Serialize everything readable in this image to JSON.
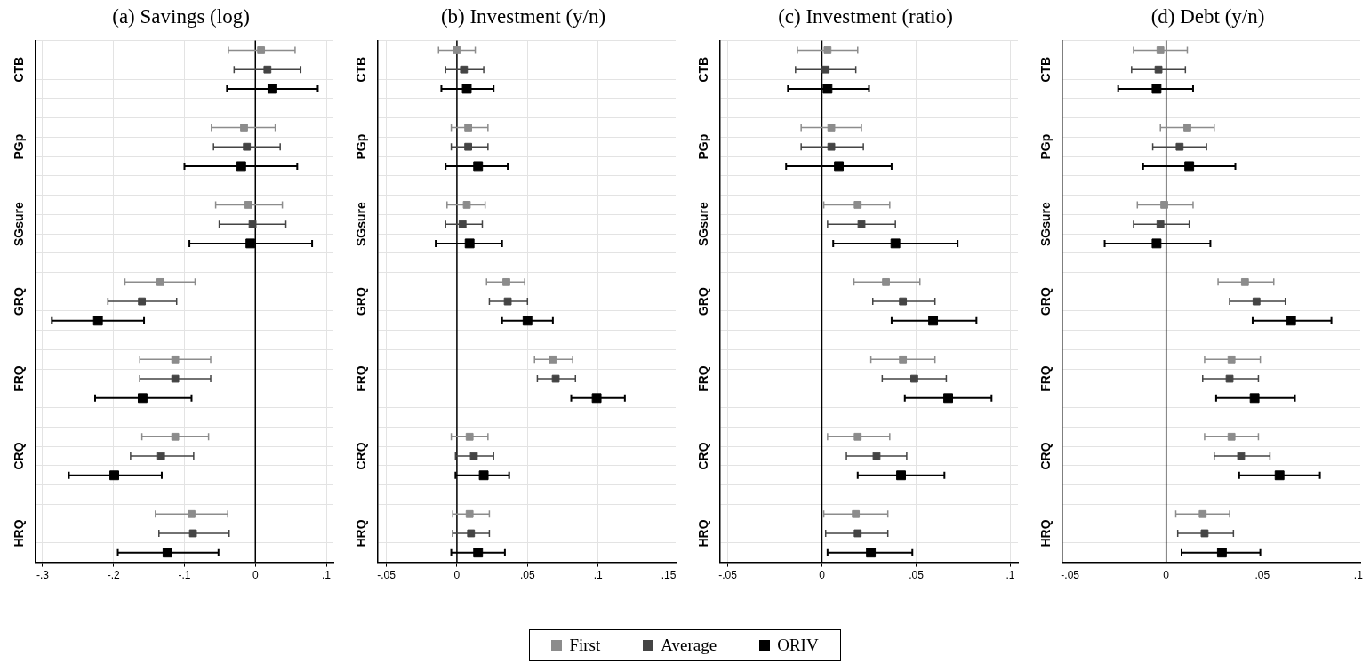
{
  "chart_data": [
    {
      "type": "scatter",
      "orientation": "horizontal",
      "title": "(a) Savings (log)",
      "categories": [
        "CTB",
        "PGp",
        "SGsure",
        "GRQ",
        "FRQ",
        "CRQ",
        "HRQ"
      ],
      "xlim": [
        -0.31,
        0.11
      ],
      "xticks": [
        {
          "value": -0.3,
          "label": "-.3"
        },
        {
          "value": -0.2,
          "label": "-.2"
        },
        {
          "value": -0.1,
          "label": "-.1"
        },
        {
          "value": 0,
          "label": "0"
        },
        {
          "value": 0.1,
          "label": ".1"
        }
      ],
      "grid": true,
      "marker": "square",
      "legend": "bottom",
      "ref_lines": [
        {
          "axis": "x",
          "value": 0,
          "color": "#000000"
        }
      ],
      "series": [
        {
          "name": "First",
          "color": "#8c8c8c",
          "values": [
            0.008,
            -0.016,
            -0.01,
            -0.134,
            -0.113,
            -0.113,
            -0.09
          ],
          "errors": [
            [
              -0.038,
              0.056
            ],
            [
              -0.062,
              0.028
            ],
            [
              -0.056,
              0.038
            ],
            [
              -0.184,
              -0.085
            ],
            [
              -0.163,
              -0.063
            ],
            [
              -0.16,
              -0.066
            ],
            [
              -0.141,
              -0.039
            ]
          ]
        },
        {
          "name": "Average",
          "color": "#444444",
          "values": [
            0.017,
            -0.012,
            -0.004,
            -0.16,
            -0.113,
            -0.133,
            -0.088
          ],
          "errors": [
            [
              -0.03,
              0.064
            ],
            [
              -0.059,
              0.035
            ],
            [
              -0.051,
              0.043
            ],
            [
              -0.208,
              -0.111
            ],
            [
              -0.163,
              -0.063
            ],
            [
              -0.176,
              -0.087
            ],
            [
              -0.136,
              -0.037
            ]
          ]
        },
        {
          "name": "ORIV",
          "color": "#000000",
          "values": [
            0.024,
            -0.02,
            -0.007,
            -0.222,
            -0.159,
            -0.199,
            -0.124
          ],
          "errors": [
            [
              -0.04,
              0.088
            ],
            [
              -0.1,
              0.059
            ],
            [
              -0.093,
              0.08
            ],
            [
              -0.287,
              -0.157
            ],
            [
              -0.226,
              -0.09
            ],
            [
              -0.263,
              -0.132
            ],
            [
              -0.194,
              -0.052
            ]
          ]
        }
      ]
    },
    {
      "type": "scatter",
      "orientation": "horizontal",
      "title": "(b) Investment (y/n)",
      "categories": [
        "CTB",
        "PGp",
        "SGsure",
        "GRQ",
        "FRQ",
        "CRQ",
        "HRQ"
      ],
      "xlim": [
        -0.056,
        0.155
      ],
      "xticks": [
        {
          "value": -0.05,
          "label": "-.05"
        },
        {
          "value": 0,
          "label": "0"
        },
        {
          "value": 0.05,
          "label": ".05"
        },
        {
          "value": 0.1,
          "label": ".1"
        },
        {
          "value": 0.15,
          "label": ".15"
        }
      ],
      "grid": true,
      "marker": "square",
      "ref_lines": [
        {
          "axis": "x",
          "value": 0,
          "color": "#000000"
        }
      ],
      "series": [
        {
          "color": "#8c8c8c",
          "values": [
            0.0,
            0.008,
            0.007,
            0.035,
            0.068,
            0.009,
            0.009
          ],
          "errors": [
            [
              -0.013,
              0.013
            ],
            [
              -0.004,
              0.022
            ],
            [
              -0.007,
              0.02
            ],
            [
              0.021,
              0.048
            ],
            [
              0.055,
              0.082
            ],
            [
              -0.004,
              0.022
            ],
            [
              -0.003,
              0.023
            ]
          ]
        },
        {
          "color": "#444444",
          "values": [
            0.005,
            0.008,
            0.004,
            0.036,
            0.07,
            0.012,
            0.01
          ],
          "errors": [
            [
              -0.008,
              0.019
            ],
            [
              -0.004,
              0.022
            ],
            [
              -0.008,
              0.018
            ],
            [
              0.023,
              0.05
            ],
            [
              0.057,
              0.084
            ],
            [
              -0.001,
              0.026
            ],
            [
              -0.003,
              0.023
            ]
          ]
        },
        {
          "color": "#000000",
          "values": [
            0.007,
            0.015,
            0.009,
            0.05,
            0.099,
            0.019,
            0.015
          ],
          "errors": [
            [
              -0.011,
              0.026
            ],
            [
              -0.008,
              0.036
            ],
            [
              -0.015,
              0.032
            ],
            [
              0.032,
              0.068
            ],
            [
              0.081,
              0.119
            ],
            [
              -0.001,
              0.037
            ],
            [
              -0.004,
              0.034
            ]
          ]
        }
      ]
    },
    {
      "type": "scatter",
      "orientation": "horizontal",
      "title": "(c) Investment (ratio)",
      "categories": [
        "CTB",
        "PGp",
        "SGsure",
        "GRQ",
        "FRQ",
        "CRQ",
        "HRQ"
      ],
      "xlim": [
        -0.054,
        0.104
      ],
      "xticks": [
        {
          "value": -0.05,
          "label": "-.05"
        },
        {
          "value": 0,
          "label": "0"
        },
        {
          "value": 0.05,
          "label": ".05"
        },
        {
          "value": 0.1,
          "label": ".1"
        }
      ],
      "grid": true,
      "marker": "square",
      "ref_lines": [
        {
          "axis": "x",
          "value": 0,
          "color": "#000000"
        }
      ],
      "series": [
        {
          "color": "#8c8c8c",
          "values": [
            0.003,
            0.005,
            0.019,
            0.034,
            0.043,
            0.019,
            0.018
          ],
          "errors": [
            [
              -0.013,
              0.019
            ],
            [
              -0.011,
              0.021
            ],
            [
              0.001,
              0.036
            ],
            [
              0.017,
              0.052
            ],
            [
              0.026,
              0.06
            ],
            [
              0.003,
              0.036
            ],
            [
              0.001,
              0.035
            ]
          ]
        },
        {
          "color": "#444444",
          "values": [
            0.002,
            0.005,
            0.021,
            0.043,
            0.049,
            0.029,
            0.019
          ],
          "errors": [
            [
              -0.014,
              0.018
            ],
            [
              -0.011,
              0.022
            ],
            [
              0.003,
              0.039
            ],
            [
              0.027,
              0.06
            ],
            [
              0.032,
              0.066
            ],
            [
              0.013,
              0.045
            ],
            [
              0.002,
              0.035
            ]
          ]
        },
        {
          "color": "#000000",
          "values": [
            0.003,
            0.009,
            0.039,
            0.059,
            0.067,
            0.042,
            0.026
          ],
          "errors": [
            [
              -0.018,
              0.025
            ],
            [
              -0.019,
              0.037
            ],
            [
              0.006,
              0.072
            ],
            [
              0.037,
              0.082
            ],
            [
              0.044,
              0.09
            ],
            [
              0.019,
              0.065
            ],
            [
              0.003,
              0.048
            ]
          ]
        }
      ]
    },
    {
      "type": "scatter",
      "orientation": "horizontal",
      "title": "(d) Debt (y/n)",
      "categories": [
        "CTB",
        "PGp",
        "SGsure",
        "GRQ",
        "FRQ",
        "CRQ",
        "HRQ"
      ],
      "xlim": [
        -0.054,
        0.101
      ],
      "xticks": [
        {
          "value": -0.05,
          "label": "-.05"
        },
        {
          "value": 0,
          "label": "0"
        },
        {
          "value": 0.05,
          "label": ".05"
        },
        {
          "value": 0.1,
          "label": ".1"
        }
      ],
      "grid": true,
      "marker": "square",
      "ref_lines": [
        {
          "axis": "x",
          "value": 0,
          "color": "#000000"
        }
      ],
      "series": [
        {
          "color": "#8c8c8c",
          "values": [
            -0.003,
            0.011,
            -0.001,
            0.041,
            0.034,
            0.034,
            0.019
          ],
          "errors": [
            [
              -0.017,
              0.011
            ],
            [
              -0.003,
              0.025
            ],
            [
              -0.015,
              0.014
            ],
            [
              0.027,
              0.056
            ],
            [
              0.02,
              0.049
            ],
            [
              0.02,
              0.048
            ],
            [
              0.005,
              0.033
            ]
          ]
        },
        {
          "color": "#444444",
          "values": [
            -0.004,
            0.007,
            -0.003,
            0.047,
            0.033,
            0.039,
            0.02
          ],
          "errors": [
            [
              -0.018,
              0.01
            ],
            [
              -0.007,
              0.021
            ],
            [
              -0.017,
              0.012
            ],
            [
              0.033,
              0.062
            ],
            [
              0.019,
              0.048
            ],
            [
              0.025,
              0.054
            ],
            [
              0.006,
              0.035
            ]
          ]
        },
        {
          "color": "#000000",
          "values": [
            -0.005,
            0.012,
            -0.005,
            0.065,
            0.046,
            0.059,
            0.029
          ],
          "errors": [
            [
              -0.025,
              0.014
            ],
            [
              -0.012,
              0.036
            ],
            [
              -0.032,
              0.023
            ],
            [
              0.045,
              0.086
            ],
            [
              0.026,
              0.067
            ],
            [
              0.038,
              0.08
            ],
            [
              0.008,
              0.049
            ]
          ]
        }
      ]
    }
  ]
}
